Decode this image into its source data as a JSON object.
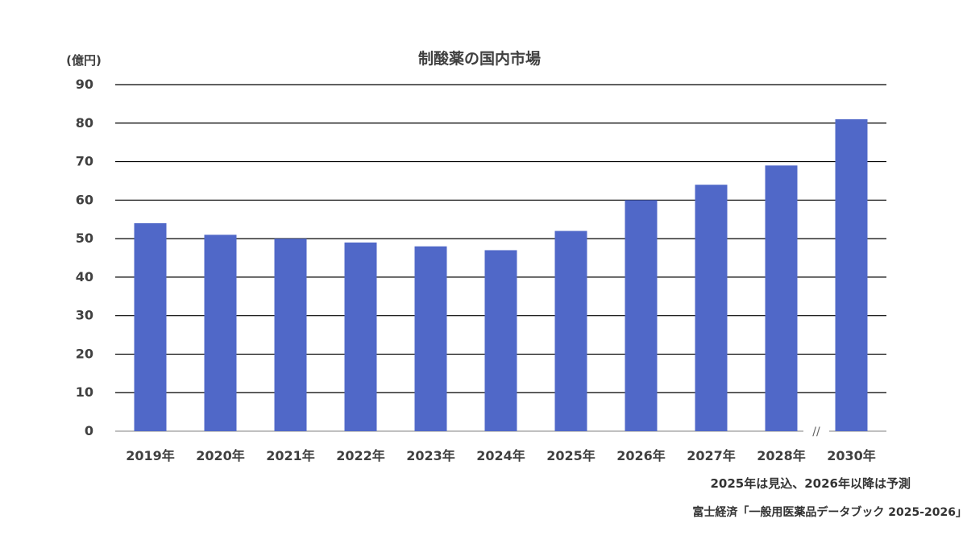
{
  "chart_data": {
    "type": "bar",
    "title": "制酸薬の国内市場",
    "ylabel": "(億円)",
    "xlabel": "",
    "categories": [
      "2019年",
      "2020年",
      "2021年",
      "2022年",
      "2023年",
      "2024年",
      "2025年",
      "2026年",
      "2027年",
      "2028年",
      "2030年"
    ],
    "values": [
      54,
      51,
      50,
      49,
      48,
      47,
      52,
      60,
      64,
      69,
      81
    ],
    "ylim": [
      0,
      90
    ],
    "yticks": [
      0,
      10,
      20,
      30,
      40,
      50,
      60,
      70,
      80,
      90
    ],
    "grid": true,
    "axis_break_marker": "//",
    "bar_color": "#5068C8"
  },
  "notes": {
    "forecast": "2025年は見込、2026年以降は予測",
    "source": "富士経済「一般用医薬品データブック 2025-2026」"
  }
}
